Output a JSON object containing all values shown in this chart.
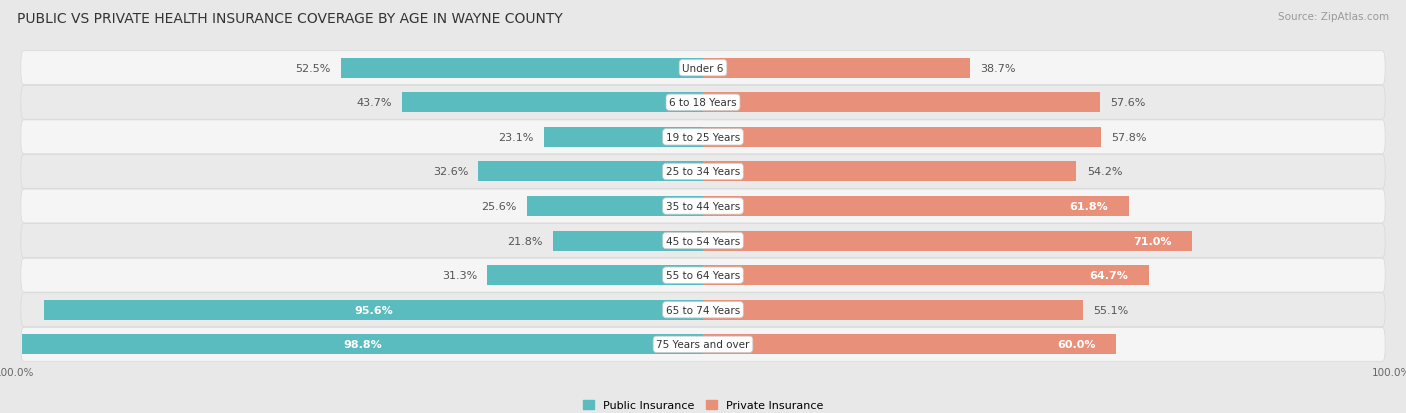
{
  "title": "PUBLIC VS PRIVATE HEALTH INSURANCE COVERAGE BY AGE IN WAYNE COUNTY",
  "source": "Source: ZipAtlas.com",
  "categories": [
    "Under 6",
    "6 to 18 Years",
    "19 to 25 Years",
    "25 to 34 Years",
    "35 to 44 Years",
    "45 to 54 Years",
    "55 to 64 Years",
    "65 to 74 Years",
    "75 Years and over"
  ],
  "public_values": [
    52.5,
    43.7,
    23.1,
    32.6,
    25.6,
    21.8,
    31.3,
    95.6,
    98.8
  ],
  "private_values": [
    38.7,
    57.6,
    57.8,
    54.2,
    61.8,
    71.0,
    64.7,
    55.1,
    60.0
  ],
  "public_color": "#5bbcbf",
  "private_color": "#e8907a",
  "label_color_white": "#ffffff",
  "label_color_dark": "#555555",
  "bg_color": "#e8e8e8",
  "row_bg_even": "#f5f5f5",
  "row_bg_odd": "#eaeaea",
  "row_border": "#d8d8d8",
  "title_fontsize": 10,
  "source_fontsize": 7.5,
  "bar_label_fontsize": 8,
  "category_fontsize": 7.5,
  "legend_fontsize": 8,
  "axis_label_fontsize": 7.5,
  "bar_height": 0.58,
  "xlim_left": -100,
  "xlim_right": 100,
  "public_white_threshold": 80,
  "private_white_threshold": 60
}
